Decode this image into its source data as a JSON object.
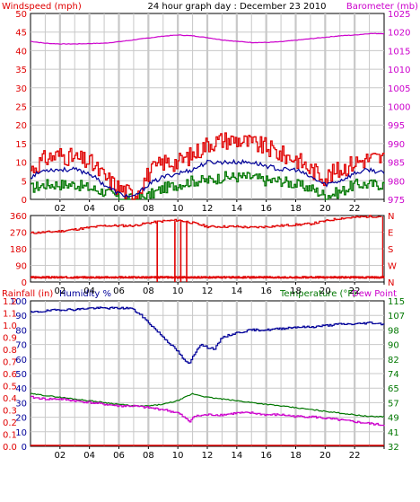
{
  "colors": {
    "wind": "#e00000",
    "baro": "#cc00cc",
    "humidity": "#000099",
    "temperature": "#007700",
    "grid": "#c8c8c8"
  },
  "chart_data": [
    {
      "type": "line",
      "title": "24 hour graph day : December 23 2010",
      "ylabel_left": "Windspeed (mph)",
      "ylabel_right": "Barometer (mb)",
      "x_ticks": [
        "02",
        "04",
        "06",
        "08",
        "10",
        "12",
        "14",
        "16",
        "18",
        "20",
        "22",
        ""
      ],
      "xlim": [
        0,
        24
      ],
      "ylim_left": [
        0,
        50
      ],
      "ylim_right": [
        975,
        1025
      ],
      "y_ticks_left": [
        "0",
        "5",
        "10",
        "15",
        "20",
        "25",
        "30",
        "35",
        "40",
        "45",
        "50"
      ],
      "y_ticks_right": [
        "975",
        "980",
        "985",
        "990",
        "995",
        "1000",
        "1005",
        "1010",
        "1015",
        "1020",
        "1025"
      ],
      "grid": true,
      "series": [
        {
          "key": "gust",
          "axis": "left",
          "x": [
            0,
            1,
            2,
            3,
            4,
            5,
            6,
            7,
            8,
            9,
            10,
            11,
            12,
            13,
            14,
            15,
            16,
            17,
            18,
            19,
            20,
            21,
            22,
            23,
            24
          ],
          "values": [
            8,
            11,
            12,
            11,
            10,
            6,
            3,
            1,
            7,
            10,
            10,
            12,
            15,
            16,
            16,
            15,
            14,
            12,
            11,
            8,
            6,
            8,
            10,
            11,
            11
          ]
        },
        {
          "key": "avg",
          "axis": "left",
          "x": [
            0,
            1,
            2,
            3,
            4,
            5,
            6,
            7,
            8,
            9,
            10,
            11,
            12,
            13,
            14,
            15,
            16,
            17,
            18,
            19,
            20,
            21,
            22,
            23,
            24
          ],
          "values": [
            6,
            8,
            8,
            8,
            7,
            4,
            1.5,
            0.5,
            4,
            6,
            7,
            8,
            10,
            10,
            10,
            10,
            9,
            8,
            8,
            6,
            4,
            5,
            7,
            8,
            7
          ]
        },
        {
          "key": "low",
          "axis": "left",
          "x": [
            0,
            1,
            2,
            3,
            4,
            5,
            6,
            7,
            8,
            9,
            10,
            11,
            12,
            13,
            14,
            15,
            16,
            17,
            18,
            19,
            20,
            21,
            22,
            23,
            24
          ],
          "values": [
            3,
            4,
            4,
            4,
            3,
            2,
            0.5,
            0,
            1,
            3,
            4,
            5,
            5,
            6,
            6,
            6,
            5,
            5,
            4,
            3,
            1,
            2,
            4,
            4,
            4
          ]
        },
        {
          "key": "barometer",
          "axis": "right",
          "x": [
            0,
            1,
            2,
            3,
            4,
            5,
            6,
            7,
            8,
            9,
            10,
            11,
            12,
            13,
            14,
            15,
            16,
            17,
            18,
            19,
            20,
            21,
            22,
            23,
            24
          ],
          "values": [
            1017.5,
            1017,
            1016.8,
            1016.8,
            1016.9,
            1017,
            1017.4,
            1017.9,
            1018.4,
            1018.9,
            1019.2,
            1019,
            1018.5,
            1017.9,
            1017.5,
            1017.2,
            1017.2,
            1017.4,
            1017.8,
            1018.2,
            1018.6,
            1019,
            1019.2,
            1019.6,
            1019.6
          ]
        }
      ]
    },
    {
      "type": "line",
      "right_axis_labels": [
        "N",
        "W",
        "S",
        "E",
        "N"
      ],
      "x_ticks": [
        "02",
        "04",
        "06",
        "08",
        "10",
        "12",
        "14",
        "16",
        "18",
        "20",
        "22",
        ""
      ],
      "xlim": [
        0,
        24
      ],
      "ylim": [
        0,
        360
      ],
      "y_ticks": [
        "0",
        "90",
        "180",
        "270",
        "360"
      ],
      "grid": true,
      "series": [
        {
          "key": "direction",
          "x": [
            0,
            1,
            2,
            3,
            4,
            5,
            6,
            7,
            8,
            9,
            10,
            11,
            12,
            13,
            14,
            15,
            16,
            17,
            18,
            19,
            20,
            21,
            22,
            23,
            23.9,
            24
          ],
          "values": [
            265,
            270,
            275,
            285,
            295,
            305,
            305,
            305,
            320,
            330,
            335,
            320,
            300,
            300,
            300,
            295,
            300,
            305,
            310,
            315,
            330,
            345,
            350,
            355,
            30,
            25
          ]
        }
      ],
      "direction_spikes": [
        8.6,
        9.8,
        10.2,
        10.6
      ]
    },
    {
      "type": "line",
      "ylabel_left_1": "Rainfall (in)",
      "ylabel_left_2": "Humidity %",
      "ylabel_right_1": "Temperature (°F)",
      "ylabel_right_2": "Dew Point",
      "x_ticks": [
        "02",
        "04",
        "06",
        "08",
        "10",
        "12",
        "14",
        "16",
        "18",
        "20",
        "22",
        ""
      ],
      "xlim": [
        0,
        24
      ],
      "humidity_ticks": [
        "0",
        "10",
        "20",
        "30",
        "40",
        "50",
        "60",
        "70",
        "80",
        "90",
        "100"
      ],
      "rain_ticks": [
        "0.0",
        "0.1",
        "0.2",
        "0.3",
        "0.4",
        "0.5",
        "0.6",
        "0.7",
        "0.8",
        "0.9",
        "1.0",
        "1.1",
        "1.2"
      ],
      "temp_ticks": [
        "32",
        "41",
        "49",
        "57",
        "65",
        "74",
        "82",
        "90",
        "98",
        "107",
        "115"
      ],
      "ylim_humidity": [
        0,
        100
      ],
      "ylim_temp": [
        32,
        115
      ],
      "ylim_rain": [
        0,
        1.2
      ],
      "grid": true,
      "series": [
        {
          "key": "humidity",
          "axis": "humidity",
          "x": [
            0,
            1,
            2,
            3,
            4,
            5,
            6,
            6.8,
            7.5,
            8,
            8.5,
            9,
            9.5,
            10,
            10.5,
            10.8,
            11,
            11.5,
            12,
            12.5,
            13,
            14,
            15,
            16,
            17,
            18,
            19,
            20,
            21,
            22,
            23,
            24
          ],
          "values": [
            92,
            93,
            94,
            94,
            95,
            95,
            95,
            95,
            90,
            85,
            80,
            75,
            70,
            65,
            58,
            57,
            62,
            70,
            68,
            67,
            75,
            78,
            80,
            80,
            81,
            82,
            82,
            83,
            84,
            84,
            85,
            84
          ]
        },
        {
          "key": "temperature",
          "axis": "temp",
          "x": [
            0,
            1,
            2,
            3,
            4,
            5,
            6,
            7,
            8,
            9,
            10,
            11,
            12,
            13,
            14,
            15,
            16,
            17,
            18,
            19,
            20,
            21,
            22,
            23,
            24
          ],
          "values": [
            62,
            61,
            60,
            59,
            58,
            57,
            56,
            55,
            55,
            56,
            58,
            62,
            60,
            59,
            58,
            57,
            56,
            55,
            54,
            53,
            52,
            51,
            50,
            49,
            49
          ]
        },
        {
          "key": "dewpoint",
          "axis": "temp",
          "x": [
            0,
            1,
            2,
            3,
            4,
            5,
            6,
            7,
            8,
            9,
            10,
            10.8,
            11,
            12,
            13,
            14,
            15,
            16,
            17,
            18,
            19,
            20,
            21,
            22,
            23,
            24
          ],
          "values": [
            60,
            59,
            59,
            58,
            57,
            56,
            55,
            55,
            54,
            53,
            51,
            46,
            49,
            50,
            50,
            51,
            51,
            50,
            50,
            49,
            49,
            48,
            47,
            46,
            45,
            44
          ]
        },
        {
          "key": "rainfall",
          "axis": "rain",
          "x": [
            0,
            24
          ],
          "values": [
            0,
            0
          ]
        }
      ]
    }
  ]
}
